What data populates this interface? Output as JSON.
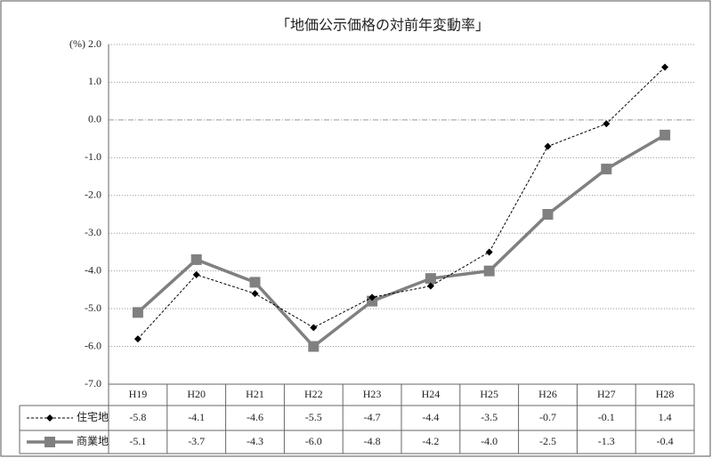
{
  "chart_data": {
    "type": "line",
    "title": "「地価公示価格の対前年変動率」",
    "y_label": "(%)",
    "categories": [
      "H19",
      "H20",
      "H21",
      "H22",
      "H23",
      "H24",
      "H25",
      "H26",
      "H27",
      "H28"
    ],
    "series": [
      {
        "name": "住宅地",
        "color": "#000000",
        "marker": "diamond",
        "line_style": "dashed",
        "values": [
          -5.8,
          -4.1,
          -4.6,
          -5.5,
          -4.7,
          -4.4,
          -3.5,
          -0.7,
          -0.1,
          1.4
        ],
        "value_labels": [
          "-5.8",
          "-4.1",
          "-4.6",
          "-5.5",
          "-4.7",
          "-4.4",
          "-3.5",
          "-0.7",
          "-0.1",
          "1.4"
        ]
      },
      {
        "name": "商業地",
        "color": "#808080",
        "marker": "square",
        "line_style": "solid",
        "values": [
          -5.1,
          -3.7,
          -4.3,
          -6.0,
          -4.8,
          -4.2,
          -4.0,
          -2.5,
          -1.3,
          -0.4
        ],
        "value_labels": [
          "-5.1",
          "-3.7",
          "-4.3",
          "-6.0",
          "-4.8",
          "-4.2",
          "-4.0",
          "-2.5",
          "-1.3",
          "-0.4"
        ]
      }
    ],
    "ylim": [
      -7,
      2
    ],
    "yticks": [
      {
        "value": 2,
        "label": "2.0"
      },
      {
        "value": 1,
        "label": "1.0"
      },
      {
        "value": 0,
        "label": "0.0"
      },
      {
        "value": -1,
        "label": "-1.0"
      },
      {
        "value": -2,
        "label": "-2.0"
      },
      {
        "value": -3,
        "label": "-3.0"
      },
      {
        "value": -4,
        "label": "-4.0"
      },
      {
        "value": -5,
        "label": "-5.0"
      },
      {
        "value": -6,
        "label": "-6.0"
      },
      {
        "value": -7,
        "label": "-7.0"
      }
    ],
    "grid": true
  }
}
